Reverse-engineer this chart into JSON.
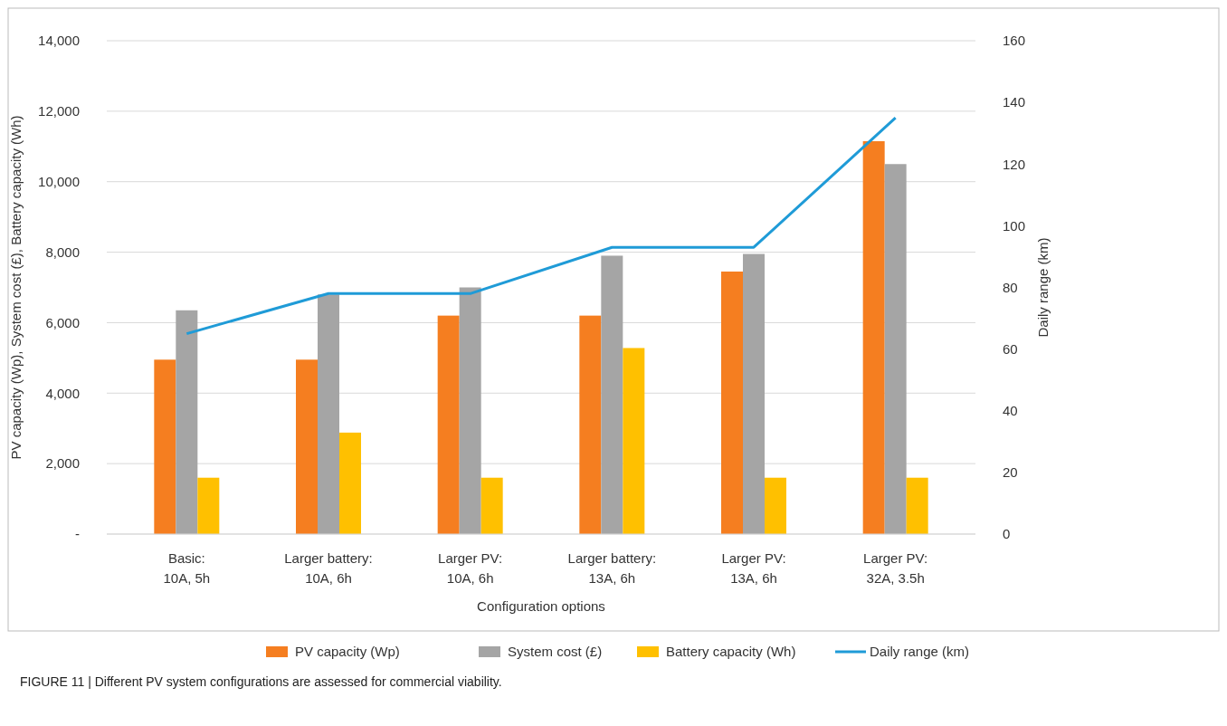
{
  "chart_data": {
    "type": "bar",
    "xlabel": "Configuration options",
    "ylabel": "PV capacity (Wp), System cost (£), Battery capacity (Wh)",
    "y2label": "Daily range (km)",
    "categories": [
      "Basic:\n10A, 5h",
      "Larger battery:\n10A, 6h",
      "Larger PV:\n10A, 6h",
      "Larger battery:\n13A, 6h",
      "Larger PV:\n13A, 6h",
      "Larger PV:\n32A, 3.5h"
    ],
    "series": [
      {
        "name": "PV capacity (Wp)",
        "color": "#f57e20",
        "values": [
          4950,
          4950,
          6200,
          6200,
          7450,
          11150
        ]
      },
      {
        "name": "System cost (£)",
        "color": "#a5a5a5",
        "values": [
          6350,
          6800,
          7000,
          7900,
          7950,
          10500
        ]
      },
      {
        "name": "Battery capacity (Wh)",
        "color": "#ffc000",
        "values": [
          1600,
          2880,
          1600,
          5280,
          1600,
          1600
        ]
      },
      {
        "name": "Daily range (km)",
        "type": "line",
        "axis": "y2",
        "color": "#1f9bd7",
        "values": [
          65,
          78,
          78,
          93,
          93,
          135
        ]
      }
    ],
    "ylim": [
      0,
      14000
    ],
    "yticks": [
      {
        "value": 0,
        "label": "-"
      },
      {
        "value": 2000,
        "label": "2,000"
      },
      {
        "value": 4000,
        "label": "4,000"
      },
      {
        "value": 6000,
        "label": "6,000"
      },
      {
        "value": 8000,
        "label": "8,000"
      },
      {
        "value": 10000,
        "label": "10,000"
      },
      {
        "value": 12000,
        "label": "12,000"
      },
      {
        "value": 14000,
        "label": "14,000"
      }
    ],
    "y2lim": [
      0,
      160
    ],
    "y2ticks": [
      0,
      20,
      40,
      60,
      80,
      100,
      120,
      140,
      160
    ],
    "grid": "y",
    "legend": "bottom",
    "annotations": [
      "FIGURE 11 | Different PV system configurations are assessed for commercial viability."
    ]
  }
}
